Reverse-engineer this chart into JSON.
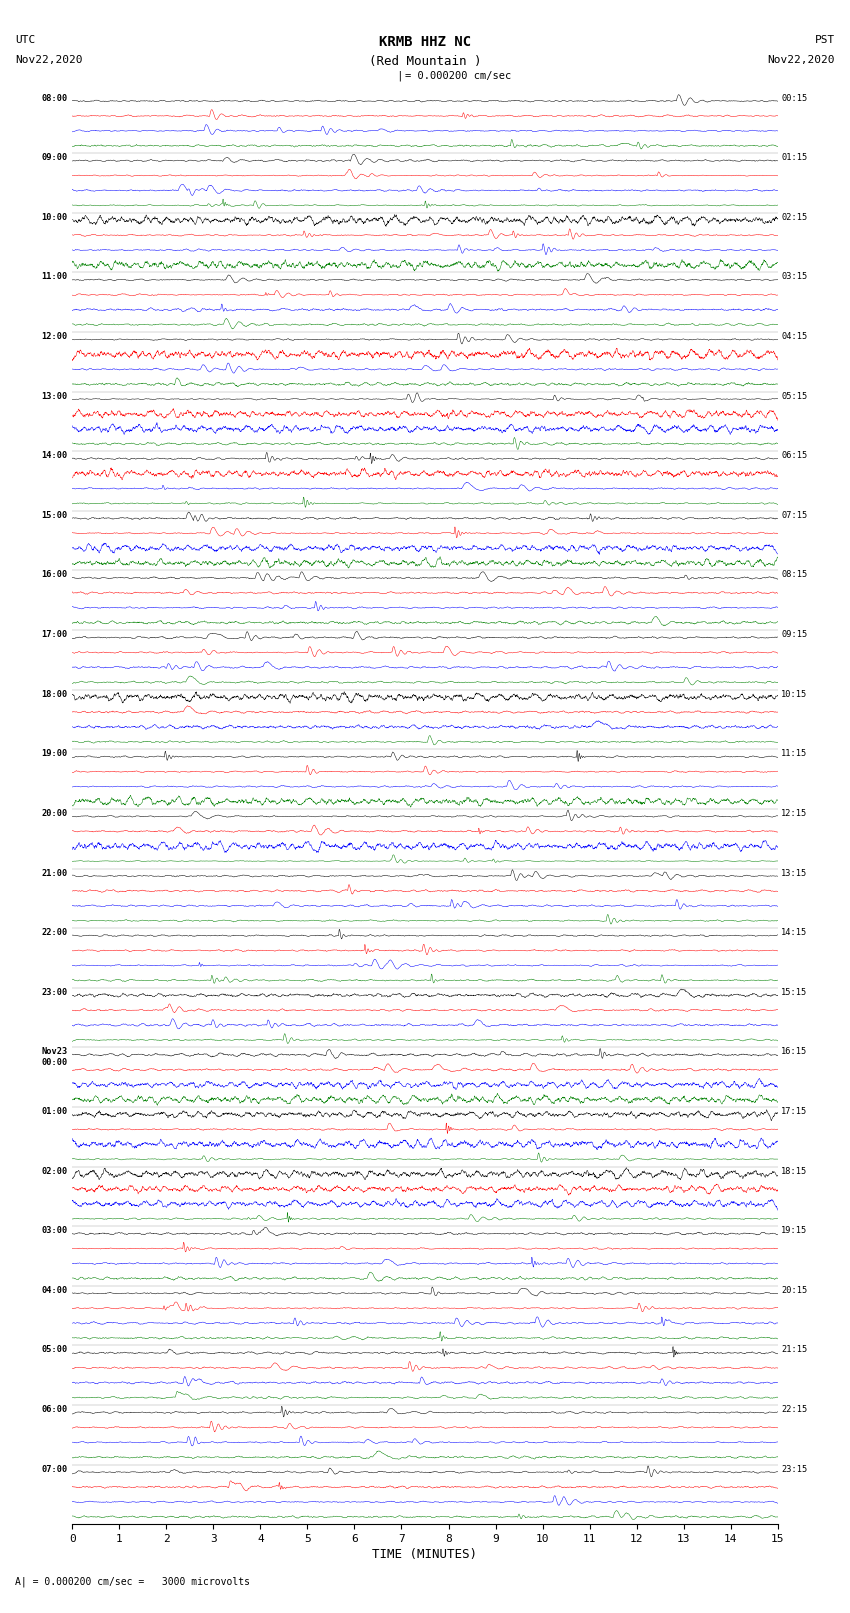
{
  "title_line1": "KRMB HHZ NC",
  "title_line2": "(Red Mountain )",
  "scale_label": "= 0.000200 cm/sec",
  "footer_label": "= 0.000200 cm/sec =   3000 microvolts",
  "utc_label1": "UTC",
  "utc_label2": "Nov22,2020",
  "pst_label1": "PST",
  "pst_label2": "Nov22,2020",
  "xlabel": "TIME (MINUTES)",
  "left_times_utc": [
    "08:00",
    "09:00",
    "10:00",
    "11:00",
    "12:00",
    "13:00",
    "14:00",
    "15:00",
    "16:00",
    "17:00",
    "18:00",
    "19:00",
    "20:00",
    "21:00",
    "22:00",
    "23:00",
    "Nov23\n00:00",
    "01:00",
    "02:00",
    "03:00",
    "04:00",
    "05:00",
    "06:00",
    "07:00"
  ],
  "right_times_pst": [
    "00:15",
    "01:15",
    "02:15",
    "03:15",
    "04:15",
    "05:15",
    "06:15",
    "07:15",
    "08:15",
    "09:15",
    "10:15",
    "11:15",
    "12:15",
    "13:15",
    "14:15",
    "15:15",
    "16:15",
    "17:15",
    "18:15",
    "19:15",
    "20:15",
    "21:15",
    "22:15",
    "23:15"
  ],
  "colors": [
    "black",
    "red",
    "blue",
    "green"
  ],
  "n_hour_blocks": 24,
  "traces_per_block": 4,
  "minutes": 15,
  "background_color": "white",
  "fig_width": 8.5,
  "fig_height": 16.13,
  "dpi": 100
}
